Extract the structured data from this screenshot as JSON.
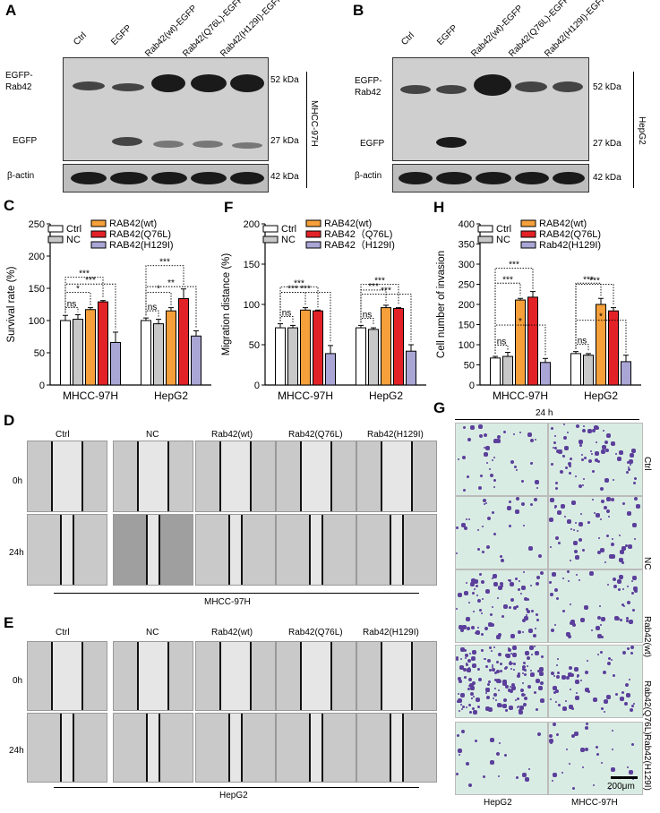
{
  "panels": {
    "A": {
      "letter": "A",
      "lanes": [
        "Ctrl",
        "EGFP",
        "Rab42(wt)-EGFP",
        "Rab42(Q76L)-EGFP",
        "Rab42(H129I)-EGFP"
      ],
      "left_labels": {
        "egfp_rab42": "EGFP-Rab42",
        "egfp": "EGFP",
        "actin": "β-actin"
      },
      "kda": {
        "top": "52 kDa",
        "mid": "27 kDa",
        "actin": "42 kDa"
      },
      "cell_line": "MHCC-97H"
    },
    "B": {
      "letter": "B",
      "lanes": [
        "Ctrl",
        "EGFP",
        "Rab42(wt)-EGFP",
        "Rab42(Q76L)-EGFP",
        "Rab42(H129I)-EGFP"
      ],
      "left_labels": {
        "egfp_rab42": "EGFP-Rab42",
        "egfp": "EGFP",
        "actin": "β-actin"
      },
      "kda": {
        "top": "52 kDa",
        "mid": "27 kDa",
        "actin": "42 kDa"
      },
      "cell_line": "HepG2"
    },
    "D": {
      "letter": "D",
      "columns": [
        "Ctrl",
        "NC",
        "Rab42(wt)",
        "Rab42(Q76L)",
        "Rab42(H129I)"
      ],
      "rows": [
        "0h",
        "24h"
      ],
      "cell_line": "MHCC-97H"
    },
    "E": {
      "letter": "E",
      "columns": [
        "Ctrl",
        "NC",
        "Rab42(wt)",
        "Rab42(Q76L)",
        "Rab42(H129I)"
      ],
      "rows": [
        "0h",
        "24h"
      ],
      "cell_line": "HepG2"
    },
    "G": {
      "letter": "G",
      "time": "24 h",
      "rows": [
        "Ctrl",
        "NC",
        "Rab42(wt)",
        "Rab42(Q76L)",
        "Rab42(H129I)"
      ],
      "columns": [
        "HepG2",
        "MHCC-97H"
      ],
      "scale_bar": "200μm"
    }
  },
  "chart_data": [
    {
      "panel": "C",
      "type": "bar",
      "title": "",
      "ylabel": "Survival rate (%)",
      "ylim": [
        0,
        250
      ],
      "yticks": [
        0,
        50,
        100,
        150,
        200,
        250
      ],
      "categories": [
        "MHCC-97H",
        "HepG2"
      ],
      "legend": {
        "placement": "top",
        "entries": [
          "Ctrl",
          "NC",
          "RAB42(wt)",
          "RAB42(Q76L)",
          "RAB42(H129I)"
        ]
      },
      "series": [
        {
          "name": "Ctrl",
          "color": "#ffffff",
          "values": [
            100,
            100
          ],
          "errors": [
            8,
            4
          ]
        },
        {
          "name": "NC",
          "color": "#c8c8c8",
          "values": [
            102,
            95
          ],
          "errors": [
            7,
            7
          ]
        },
        {
          "name": "RAB42(wt)",
          "color": "#f5a03a",
          "values": [
            117,
            115
          ],
          "errors": [
            3,
            5
          ]
        },
        {
          "name": "RAB42(Q76L)",
          "color": "#e32227",
          "values": [
            129,
            134
          ],
          "errors": [
            2,
            15
          ]
        },
        {
          "name": "RAB42(H129I)",
          "color": "#a9a6d6",
          "values": [
            66,
            76
          ],
          "errors": [
            16,
            8
          ]
        }
      ],
      "significance": [
        {
          "group": "MHCC-97H",
          "labels": [
            "ns",
            "*",
            "***",
            "***"
          ]
        },
        {
          "group": "HepG2",
          "labels": [
            "ns",
            "*",
            "***",
            "**"
          ]
        }
      ]
    },
    {
      "panel": "F",
      "type": "bar",
      "title": "",
      "ylabel": "Migration distance (%)",
      "ylim": [
        0,
        200
      ],
      "yticks": [
        0,
        50,
        100,
        150,
        200
      ],
      "categories": [
        "MHCC-97H",
        "HepG2"
      ],
      "legend": {
        "placement": "top",
        "entries": [
          "Ctrl",
          "NC",
          "RAB42(wt)",
          "RAB42（Q76L)",
          "RAB42（H129I)"
        ]
      },
      "series": [
        {
          "name": "Ctrl",
          "color": "#ffffff",
          "values": [
            71,
            71
          ],
          "errors": [
            5,
            3
          ]
        },
        {
          "name": "NC",
          "color": "#c8c8c8",
          "values": [
            71,
            69
          ],
          "errors": [
            3,
            2
          ]
        },
        {
          "name": "RAB42(wt)",
          "color": "#f5a03a",
          "values": [
            93,
            96
          ],
          "errors": [
            3,
            3
          ]
        },
        {
          "name": "RAB42（Q76L)",
          "color": "#e32227",
          "values": [
            92,
            95
          ],
          "errors": [
            1,
            1
          ]
        },
        {
          "name": "RAB42（H129I)",
          "color": "#a9a6d6",
          "values": [
            39,
            42
          ],
          "errors": [
            10,
            8
          ]
        }
      ],
      "significance": [
        {
          "group": "MHCC-97H",
          "labels": [
            "ns",
            "***",
            "***",
            "***"
          ]
        },
        {
          "group": "HepG2",
          "labels": [
            "ns",
            "***",
            "***",
            "***"
          ]
        }
      ]
    },
    {
      "panel": "H",
      "type": "bar",
      "title": "",
      "ylabel": "Cell number of invasion",
      "ylim": [
        0,
        400
      ],
      "yticks": [
        0,
        50,
        100,
        150,
        200,
        250,
        300,
        350,
        400
      ],
      "categories": [
        "MHCC-97H",
        "HepG2"
      ],
      "legend": {
        "placement": "top",
        "entries": [
          "Ctrl",
          "NC",
          "RAB42(wt)",
          "RAB42(Q76L)",
          "Rab42(H129I)"
        ]
      },
      "series": [
        {
          "name": "Ctrl",
          "color": "#ffffff",
          "values": [
            67,
            78
          ],
          "errors": [
            4,
            5
          ]
        },
        {
          "name": "NC",
          "color": "#c8c8c8",
          "values": [
            71,
            74
          ],
          "errors": [
            10,
            4
          ]
        },
        {
          "name": "RAB42(wt)",
          "color": "#f5a03a",
          "values": [
            211,
            200
          ],
          "errors": [
            4,
            15
          ]
        },
        {
          "name": "RAB42(Q76L)",
          "color": "#e32227",
          "values": [
            218,
            184
          ],
          "errors": [
            14,
            8
          ]
        },
        {
          "name": "Rab42(H129I)",
          "color": "#a9a6d6",
          "values": [
            56,
            58
          ],
          "errors": [
            10,
            16
          ]
        }
      ],
      "significance": [
        {
          "group": "MHCC-97H",
          "labels": [
            "ns",
            "***",
            "***",
            "*"
          ]
        },
        {
          "group": "HepG2",
          "labels": [
            "ns",
            "***",
            "***",
            "*"
          ]
        }
      ]
    }
  ]
}
